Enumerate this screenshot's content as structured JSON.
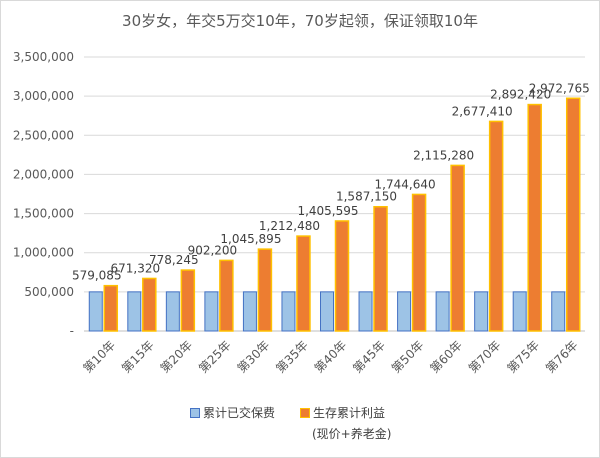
{
  "chart_data": {
    "type": "bar",
    "title": "30岁女，年交5万交10年，70岁起领，保证领取10年",
    "categories": [
      "第10年",
      "第15年",
      "第20年",
      "第25年",
      "第30年",
      "第35年",
      "第40年",
      "第45年",
      "第50年",
      "第60年",
      "第70年",
      "第75年",
      "第76年"
    ],
    "series": [
      {
        "name": "累计已交保费",
        "color": "#9dc3e6",
        "border": "#4472c4",
        "values": [
          500000,
          500000,
          500000,
          500000,
          500000,
          500000,
          500000,
          500000,
          500000,
          500000,
          500000,
          500000,
          500000
        ]
      },
      {
        "name": "生存累计利益",
        "color": "#ed7d31",
        "border": "#ffc000",
        "values": [
          579085,
          671320,
          778245,
          902200,
          1045895,
          1212480,
          1405595,
          1587150,
          1744640,
          2115280,
          2677410,
          2892420,
          2972765
        ],
        "labels": [
          "579,085",
          "671,320",
          "778,245",
          "902,200",
          "1,045,895",
          "1,212,480",
          "1,405,595",
          "1,587,150",
          "1,744,640",
          "2,115,280",
          "2,677,410",
          "2,892,420",
          "2,972,765"
        ]
      }
    ],
    "ylim": [
      0,
      3500000
    ],
    "yticks": [
      0,
      500000,
      1000000,
      1500000,
      2000000,
      2500000,
      3000000,
      3500000
    ],
    "ytick_labels": [
      "-",
      "500,000",
      "1,000,000",
      "1,500,000",
      "2,000,000",
      "2,500,000",
      "3,000,000",
      "3,500,000"
    ],
    "grid": true,
    "legend_position": "bottom"
  },
  "legend": {
    "paid_label": "累计已交保费",
    "benefit_label": "生存累计利益",
    "benefit_note": "(现价+养老金)"
  }
}
